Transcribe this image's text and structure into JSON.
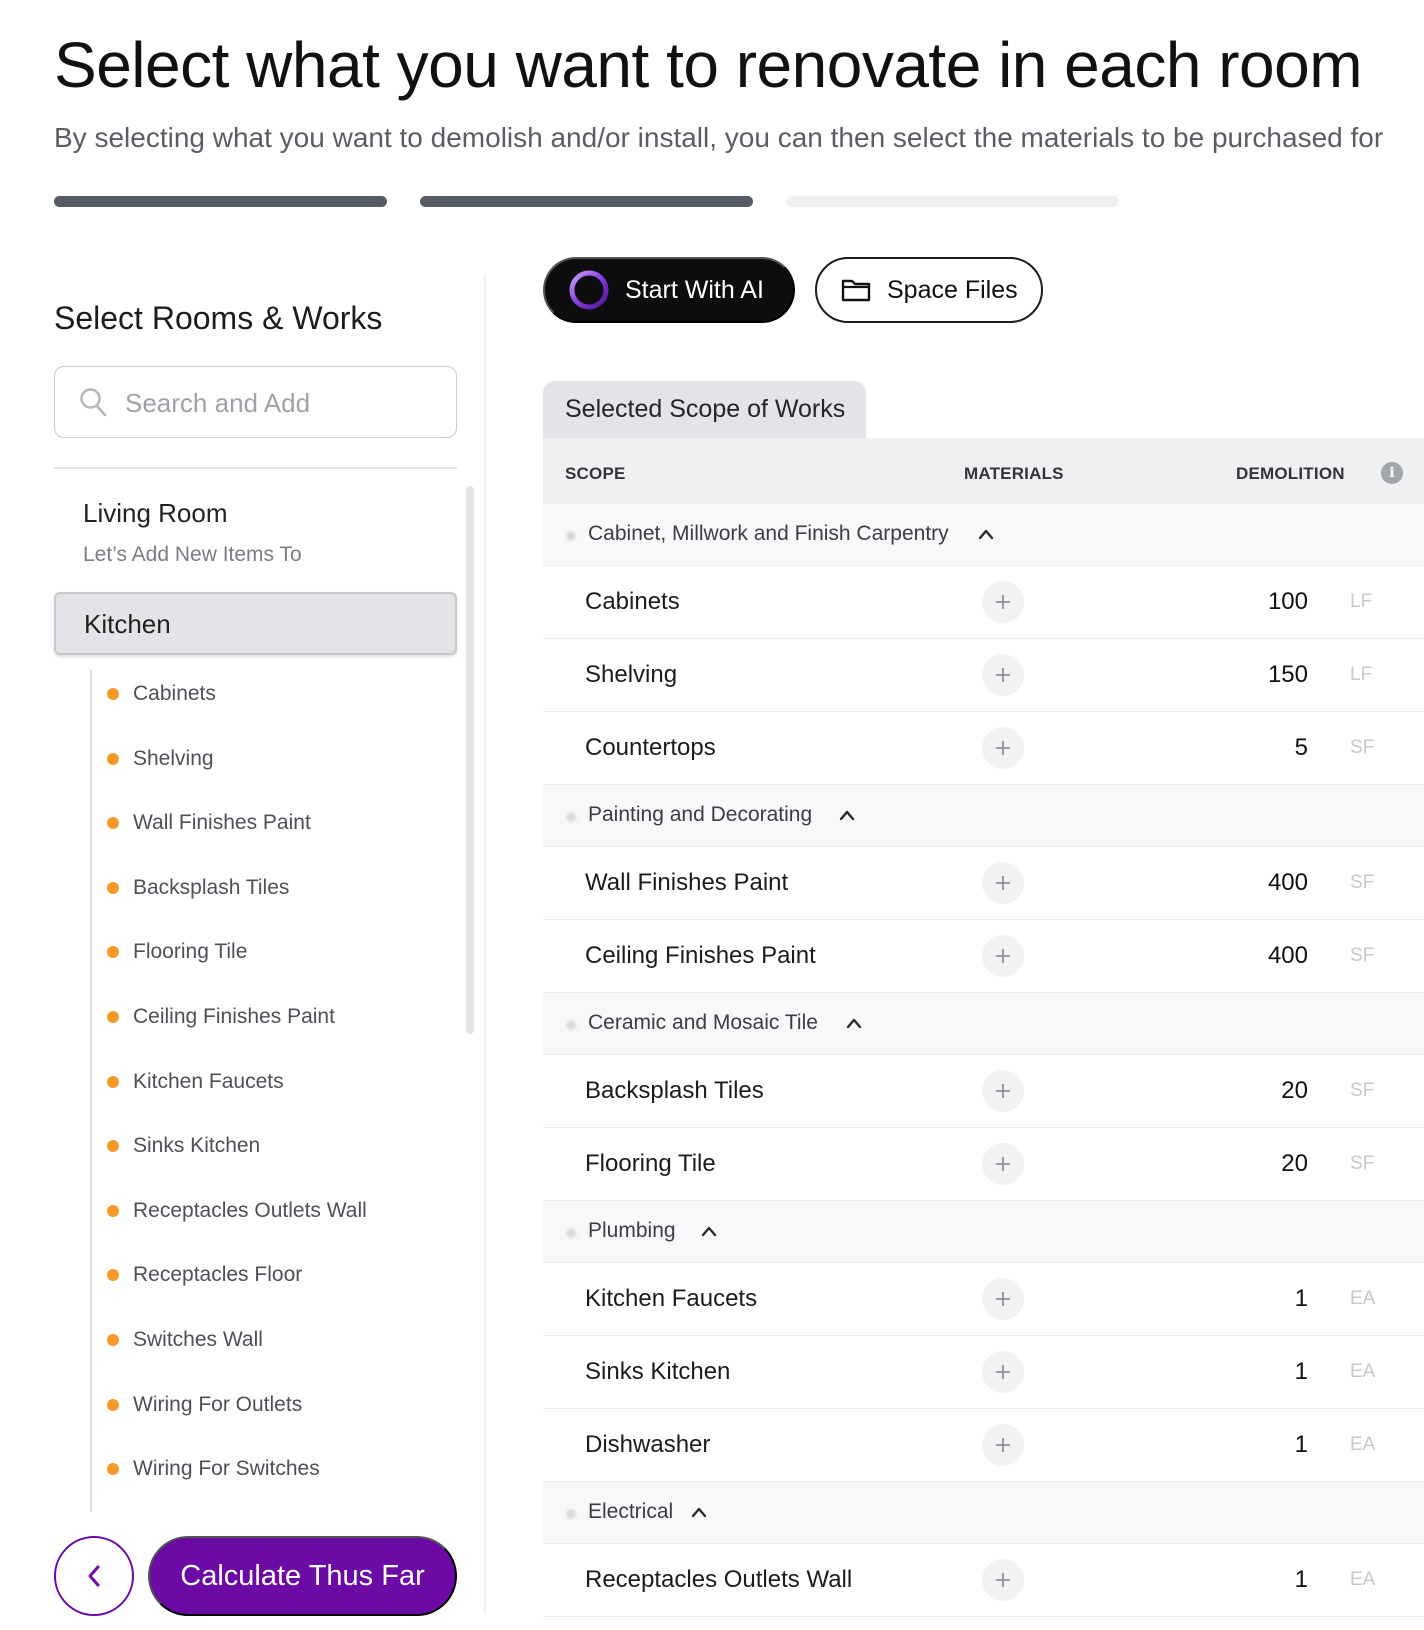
{
  "header": {
    "title": "Select what you want to renovate in each room",
    "subtitle": "By selecting what you want to demolish and/or install, you can then select the materials to be purchased for"
  },
  "progress": {
    "steps_total": 3,
    "steps_completed": 2
  },
  "sidebar": {
    "title": "Select Rooms & Works",
    "search_placeholder": "Search and Add",
    "rooms": [
      {
        "name": "Living Room",
        "subtitle": "Let’s Add New Items To"
      },
      {
        "name": "Kitchen",
        "selected": true
      }
    ],
    "works": [
      "Cabinets",
      "Shelving",
      "Wall Finishes Paint",
      "Backsplash Tiles",
      "Flooring Tile",
      "Ceiling Finishes Paint",
      "Kitchen Faucets",
      "Sinks Kitchen",
      "Receptacles Outlets Wall",
      "Receptacles Floor",
      "Switches Wall",
      "Wiring For Outlets",
      "Wiring For Switches"
    ],
    "work_dot_color": "#f59a28",
    "calculate_label": "Calculate Thus Far"
  },
  "toolbar": {
    "ai_label": "Start With AI",
    "files_label": "Space Files"
  },
  "scope": {
    "tab_label": "Selected Scope of Works",
    "columns": {
      "scope": "SCOPE",
      "materials": "MATERIALS",
      "demolition": "DEMOLITION"
    },
    "groups": [
      {
        "name": "Cabinet, Millwork and Finish Carpentry",
        "items": [
          {
            "name": "Cabinets",
            "qty": "100",
            "unit": "LF"
          },
          {
            "name": "Shelving",
            "qty": "150",
            "unit": "LF"
          },
          {
            "name": "Countertops",
            "qty": "5",
            "unit": "SF"
          }
        ]
      },
      {
        "name": "Painting and Decorating",
        "items": [
          {
            "name": "Wall Finishes Paint",
            "qty": "400",
            "unit": "SF"
          },
          {
            "name": "Ceiling Finishes Paint",
            "qty": "400",
            "unit": "SF"
          }
        ]
      },
      {
        "name": "Ceramic and Mosaic Tile",
        "items": [
          {
            "name": "Backsplash Tiles",
            "qty": "20",
            "unit": "SF"
          },
          {
            "name": "Flooring Tile",
            "qty": "20",
            "unit": "SF"
          }
        ]
      },
      {
        "name": "Plumbing",
        "items": [
          {
            "name": "Kitchen Faucets",
            "qty": "1",
            "unit": "EA"
          },
          {
            "name": "Sinks Kitchen",
            "qty": "1",
            "unit": "EA"
          },
          {
            "name": "Dishwasher",
            "qty": "1",
            "unit": "EA"
          }
        ]
      },
      {
        "name": "Electrical",
        "items": [
          {
            "name": "Receptacles Outlets Wall",
            "qty": "1",
            "unit": "EA"
          }
        ]
      }
    ]
  },
  "colors": {
    "accent_purple": "#6b0aa4",
    "progress_done": "#565b66",
    "progress_todo": "#eeeff1"
  }
}
